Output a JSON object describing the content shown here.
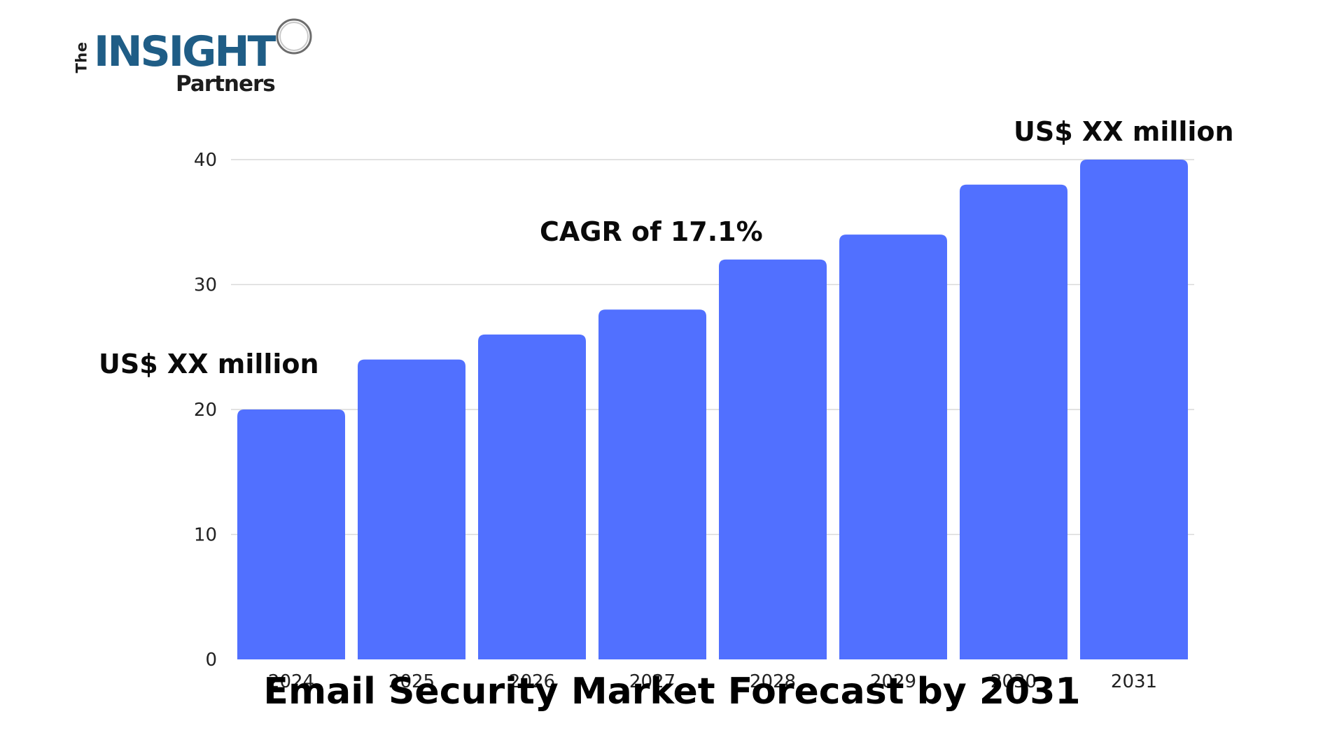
{
  "logo": {
    "the": "The",
    "insight": "INSIGHT",
    "partners": "Partners"
  },
  "annotations": {
    "start_value": "US$ XX million",
    "cagr": "CAGR of 17.1%",
    "end_value": "US$ XX million"
  },
  "chart_data": {
    "type": "bar",
    "title": "Email Security Market Forecast by 2031",
    "categories": [
      "2024",
      "2025",
      "2026",
      "2027",
      "2028",
      "2029",
      "2030",
      "2031"
    ],
    "values": [
      20,
      24,
      26,
      28,
      32,
      34,
      38,
      40
    ],
    "ylim": [
      0,
      40
    ],
    "yticks": [
      0,
      10,
      20,
      30,
      40
    ],
    "xlabel": "",
    "ylabel": "",
    "grid": true,
    "bar_color": "#5170ff",
    "grid_color": "#d9d9d9"
  }
}
